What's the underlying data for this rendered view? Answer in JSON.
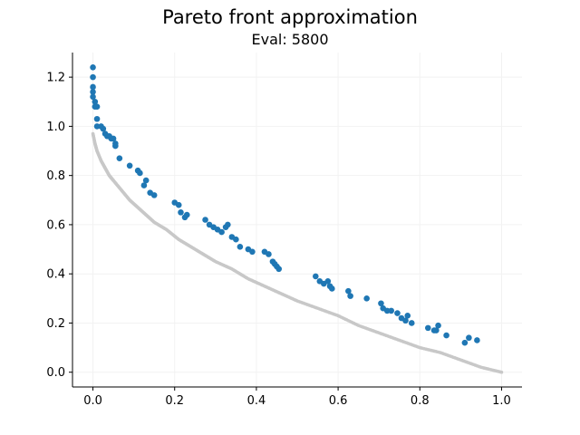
{
  "chart_data": {
    "type": "scatter",
    "title": "Pareto front approximation",
    "subtitle": "Eval: 5800",
    "xlabel": "",
    "ylabel": "",
    "xlim": [
      -0.05,
      1.05
    ],
    "ylim": [
      -0.06,
      1.3
    ],
    "xticks": [
      "0.0",
      "0.2",
      "0.4",
      "0.6",
      "0.8",
      "1.0"
    ],
    "xtick_values": [
      0.0,
      0.2,
      0.4,
      0.6,
      0.8,
      1.0
    ],
    "yticks": [
      "0.0",
      "0.2",
      "0.4",
      "0.6",
      "0.8",
      "1.0",
      "1.2"
    ],
    "ytick_values": [
      0.0,
      0.2,
      0.4,
      0.6,
      0.8,
      1.0,
      1.2
    ],
    "grid": true,
    "legend": "none",
    "colors": {
      "front": "#c8c8c8",
      "approx": "#1f77b4"
    },
    "series": [
      {
        "kind": "reference-curve",
        "x": [
          0.0,
          0.005,
          0.01,
          0.02,
          0.03,
          0.04,
          0.05,
          0.07,
          0.09,
          0.11,
          0.13,
          0.15,
          0.18,
          0.21,
          0.24,
          0.27,
          0.3,
          0.34,
          0.38,
          0.42,
          0.46,
          0.5,
          0.55,
          0.6,
          0.65,
          0.7,
          0.75,
          0.8,
          0.85,
          0.9,
          0.95,
          1.0
        ],
        "y": [
          0.97,
          0.93,
          0.9,
          0.86,
          0.83,
          0.8,
          0.78,
          0.74,
          0.7,
          0.67,
          0.64,
          0.61,
          0.58,
          0.54,
          0.51,
          0.48,
          0.45,
          0.42,
          0.38,
          0.35,
          0.32,
          0.29,
          0.26,
          0.23,
          0.19,
          0.16,
          0.13,
          0.1,
          0.08,
          0.05,
          0.02,
          0.0
        ]
      },
      {
        "kind": "approximation",
        "x": [
          0.0,
          0.0,
          0.0,
          0.0,
          0.0,
          0.005,
          0.005,
          0.01,
          0.01,
          0.01,
          0.02,
          0.025,
          0.03,
          0.035,
          0.04,
          0.045,
          0.05,
          0.055,
          0.055,
          0.065,
          0.09,
          0.11,
          0.115,
          0.125,
          0.13,
          0.14,
          0.15,
          0.2,
          0.21,
          0.215,
          0.225,
          0.23,
          0.275,
          0.285,
          0.295,
          0.305,
          0.315,
          0.325,
          0.33,
          0.34,
          0.35,
          0.36,
          0.38,
          0.39,
          0.42,
          0.43,
          0.44,
          0.445,
          0.45,
          0.455,
          0.545,
          0.555,
          0.565,
          0.575,
          0.58,
          0.585,
          0.625,
          0.63,
          0.67,
          0.705,
          0.71,
          0.72,
          0.73,
          0.745,
          0.755,
          0.765,
          0.77,
          0.78,
          0.82,
          0.835,
          0.84,
          0.845,
          0.865,
          0.91,
          0.92,
          0.94
        ],
        "y": [
          1.24,
          1.2,
          1.16,
          1.14,
          1.12,
          1.1,
          1.08,
          1.08,
          1.03,
          1.0,
          1.0,
          0.99,
          0.97,
          0.96,
          0.96,
          0.95,
          0.95,
          0.93,
          0.92,
          0.87,
          0.84,
          0.82,
          0.81,
          0.76,
          0.78,
          0.73,
          0.72,
          0.69,
          0.68,
          0.65,
          0.63,
          0.64,
          0.62,
          0.6,
          0.59,
          0.58,
          0.57,
          0.59,
          0.6,
          0.55,
          0.54,
          0.51,
          0.5,
          0.49,
          0.49,
          0.48,
          0.45,
          0.44,
          0.43,
          0.42,
          0.39,
          0.37,
          0.36,
          0.37,
          0.35,
          0.34,
          0.33,
          0.31,
          0.3,
          0.28,
          0.26,
          0.25,
          0.25,
          0.24,
          0.22,
          0.21,
          0.23,
          0.2,
          0.18,
          0.17,
          0.17,
          0.19,
          0.15,
          0.12,
          0.14,
          0.13
        ]
      }
    ]
  }
}
